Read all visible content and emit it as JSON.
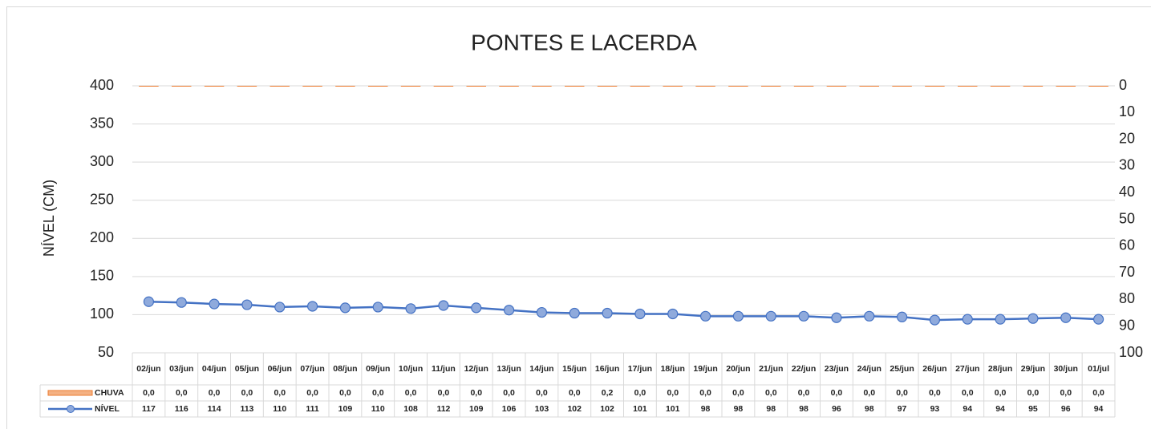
{
  "chart_data": {
    "type": "combo",
    "title": "PONTES E LACERDA",
    "y_label": "NÍVEL (CM)",
    "categories": [
      "02/jun",
      "03/jun",
      "04/jun",
      "05/jun",
      "06/jun",
      "07/jun",
      "08/jun",
      "09/jun",
      "10/jun",
      "11/jun",
      "12/jun",
      "13/jun",
      "14/jun",
      "15/jun",
      "16/jun",
      "17/jun",
      "18/jun",
      "19/jun",
      "20/jun",
      "21/jun",
      "22/jun",
      "23/jun",
      "24/jun",
      "25/jun",
      "26/jun",
      "27/jun",
      "28/jun",
      "29/jun",
      "30/jun",
      "01/jul"
    ],
    "series": [
      {
        "name": "CHUVA",
        "type": "bar",
        "axis": "y2",
        "color": "#ED7D31",
        "values": [
          0,
          0,
          0,
          0,
          0,
          0,
          0,
          0,
          0,
          0,
          0,
          0,
          0,
          0,
          0.2,
          0,
          0,
          0,
          0,
          0,
          0,
          0,
          0,
          0,
          0,
          0,
          0,
          0,
          0,
          0
        ],
        "value_labels": [
          "0,0",
          "0,0",
          "0,0",
          "0,0",
          "0,0",
          "0,0",
          "0,0",
          "0,0",
          "0,0",
          "0,0",
          "0,0",
          "0,0",
          "0,0",
          "0,0",
          "0,2",
          "0,0",
          "0,0",
          "0,0",
          "0,0",
          "0,0",
          "0,0",
          "0,0",
          "0,0",
          "0,0",
          "0,0",
          "0,0",
          "0,0",
          "0,0",
          "0,0",
          "0,0"
        ]
      },
      {
        "name": "NÍVEL",
        "type": "line",
        "color": "#4472C4",
        "marker_fill": "#8FAADC",
        "values": [
          117,
          116,
          114,
          113,
          110,
          111,
          109,
          110,
          108,
          112,
          109,
          106,
          103,
          102,
          102,
          101,
          101,
          98,
          98,
          98,
          98,
          96,
          98,
          97,
          93,
          94,
          94,
          95,
          96,
          94
        ]
      }
    ],
    "ylim": [
      50,
      400
    ],
    "yticks": [
      50,
      100,
      150,
      200,
      250,
      300,
      350,
      400
    ],
    "y2lim": [
      100,
      0
    ],
    "y2ticks": [
      0,
      10,
      20,
      30,
      40,
      50,
      60,
      70,
      80,
      90,
      100
    ],
    "grid": true,
    "data_table": true
  }
}
